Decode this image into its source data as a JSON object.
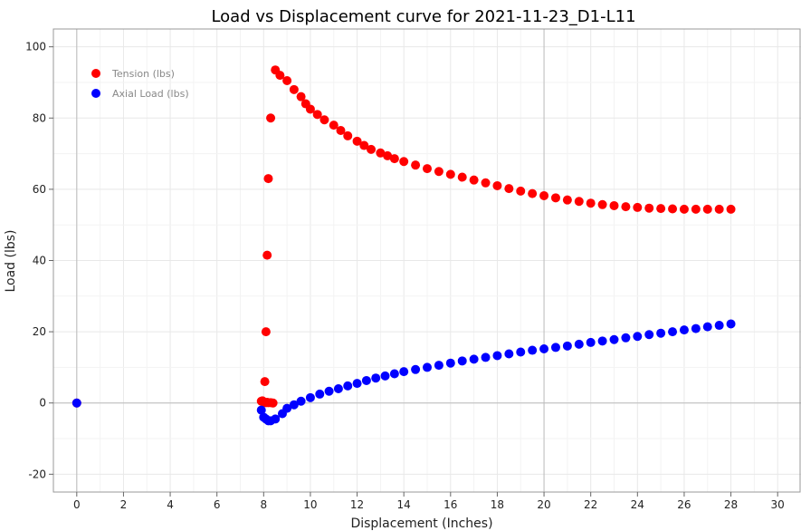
{
  "chart_data": {
    "type": "scatter",
    "title": "Load vs Displacement curve for 2021-11-23_D1-L11",
    "xlabel": "Displacement (Inches)",
    "ylabel": "Load (lbs)",
    "xlim": [
      -1,
      31
    ],
    "ylim": [
      -25,
      105
    ],
    "xticks": [
      0,
      2,
      4,
      6,
      8,
      10,
      12,
      14,
      16,
      18,
      20,
      22,
      24,
      26,
      28,
      30
    ],
    "yticks": [
      -20,
      0,
      20,
      40,
      60,
      80,
      100
    ],
    "grid": true,
    "legend": "top-left",
    "series": [
      {
        "name": "Tension (lbs)",
        "color": "#ff0000",
        "x": [
          0,
          7.9,
          7.95,
          8.0,
          8.05,
          8.1,
          8.15,
          8.2,
          8.3,
          8.4,
          8.05,
          8.1,
          8.15,
          8.2,
          8.3,
          8.5,
          8.7,
          9.0,
          9.3,
          9.6,
          9.8,
          10.0,
          10.3,
          10.6,
          11.0,
          11.3,
          11.6,
          12.0,
          12.3,
          12.6,
          13.0,
          13.3,
          13.6,
          14.0,
          14.5,
          15.0,
          15.5,
          16.0,
          16.5,
          17.0,
          17.5,
          18.0,
          18.5,
          19.0,
          19.5,
          20.0,
          20.5,
          21.0,
          21.5,
          22.0,
          22.5,
          23.0,
          23.5,
          24.0,
          24.5,
          25.0,
          25.5,
          26.0,
          26.5,
          27.0,
          27.5,
          28.0
        ],
        "y": [
          0,
          0.5,
          0.6,
          0.3,
          0.2,
          0.1,
          0.2,
          0.1,
          0.1,
          0.0,
          6,
          20,
          41.5,
          63,
          80,
          93.5,
          92,
          90.5,
          88,
          86,
          84,
          82.5,
          81,
          79.5,
          78,
          76.5,
          75,
          73.5,
          72.3,
          71.2,
          70.2,
          69.4,
          68.6,
          67.8,
          66.8,
          65.8,
          65.0,
          64.2,
          63.4,
          62.6,
          61.8,
          61.0,
          60.2,
          59.5,
          58.8,
          58.2,
          57.6,
          57.0,
          56.6,
          56.1,
          55.7,
          55.4,
          55.1,
          54.9,
          54.7,
          54.6,
          54.5,
          54.4,
          54.4,
          54.4,
          54.4,
          54.4
        ]
      },
      {
        "name": "Axial Load (lbs)",
        "color": "#0000ff",
        "x": [
          0,
          7.9,
          8.0,
          8.1,
          8.2,
          8.3,
          8.5,
          8.8,
          9.0,
          9.3,
          9.6,
          10.0,
          10.4,
          10.8,
          11.2,
          11.6,
          12.0,
          12.4,
          12.8,
          13.2,
          13.6,
          14.0,
          14.5,
          15.0,
          15.5,
          16.0,
          16.5,
          17.0,
          17.5,
          18.0,
          18.5,
          19.0,
          19.5,
          20.0,
          20.5,
          21.0,
          21.5,
          22.0,
          22.5,
          23.0,
          23.5,
          24.0,
          24.5,
          25.0,
          25.5,
          26.0,
          26.5,
          27.0,
          27.5,
          28.0
        ],
        "y": [
          0,
          -2,
          -4,
          -4.5,
          -5,
          -5,
          -4.5,
          -3,
          -1.5,
          -0.5,
          0.5,
          1.5,
          2.5,
          3.3,
          4.0,
          4.8,
          5.5,
          6.3,
          7.0,
          7.6,
          8.2,
          8.8,
          9.4,
          10.0,
          10.6,
          11.2,
          11.8,
          12.3,
          12.8,
          13.3,
          13.8,
          14.3,
          14.8,
          15.2,
          15.6,
          16.0,
          16.5,
          17.0,
          17.4,
          17.8,
          18.3,
          18.7,
          19.2,
          19.6,
          20.0,
          20.5,
          20.9,
          21.4,
          21.8,
          22.2
        ]
      }
    ]
  }
}
